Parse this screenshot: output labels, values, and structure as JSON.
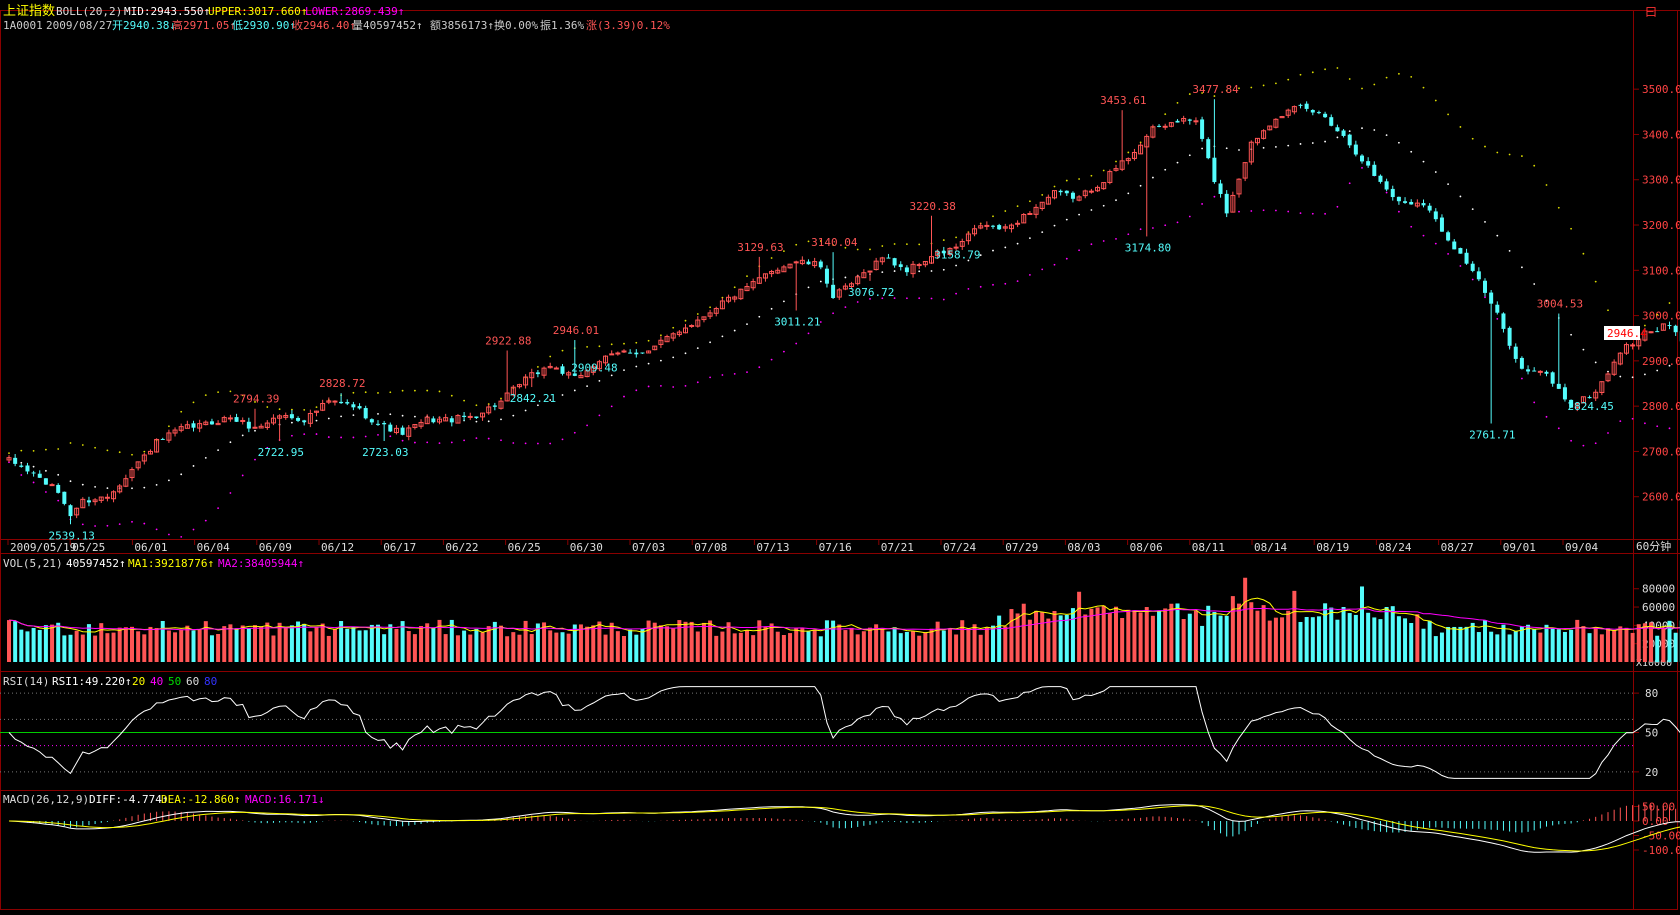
{
  "header": {
    "title": "上证指数",
    "boll_label": "BOLL(20,2)",
    "mid": "MID:2943.550↑",
    "upper": "UPPER:3017.660↑",
    "lower": "LOWER:2869.439↑",
    "code": "1A0001",
    "date": "2009/08/27",
    "open": "开2940.38↓",
    "high": "高2971.05↑",
    "low": "低2930.90↑",
    "close": "收2946.40↑",
    "volume": "量40597452↑",
    "amount": "额3856173↑",
    "turnover": "换0.00%",
    "amplitude": "振1.36%",
    "change": "涨(3.39)0.12%"
  },
  "corner_label": "曰",
  "period_label": "60分钟",
  "price_tag": "2946.4",
  "colors": {
    "background": "#000000",
    "up": "#ff5555",
    "down": "#54fcfc",
    "frame": "#8a0000",
    "mid_line": "#dddd00",
    "lower_line": "#ff00ff",
    "rsi_line": "#ffffff",
    "rsi_mid": "#00cc00",
    "macd_diff": "#ffffff",
    "macd_dea": "#ffff00"
  },
  "vol_panel": {
    "label": "VOL(5,21)",
    "value": "40597452↑",
    "ma1": "MA1:39218776↑",
    "ma2": "MA2:38405944↑",
    "unit": "X10000",
    "ticks": [
      "80000",
      "60000",
      "40000",
      "20000"
    ]
  },
  "rsi_panel": {
    "label": "RSI(14)",
    "value": "RSI1:49.220↑",
    "levels": [
      "20",
      "40",
      "50",
      "60",
      "80"
    ],
    "ticks": [
      "80",
      "50",
      "20"
    ]
  },
  "macd_panel": {
    "label": "MACD(26,12,9)",
    "diff": "DIFF:-4.774↑",
    "dea": "DEA:-12.860↑",
    "macd": "MACD:16.171↓",
    "ticks": [
      "50.00",
      "0.00",
      "-50.00",
      "-100.0"
    ]
  },
  "chart_data": {
    "type": "candlestick",
    "y_range": [
      2500,
      3560
    ],
    "y_ticks": [
      "3500.0",
      "3400.0",
      "3300.0",
      "3200.0",
      "3100.0",
      "3000.0",
      "2900.0",
      "2800.0",
      "2700.0",
      "2600.0"
    ],
    "x_ticks": [
      "2009/05/19",
      "05/25",
      "06/01",
      "06/04",
      "06/09",
      "06/12",
      "06/17",
      "06/22",
      "06/25",
      "06/30",
      "07/03",
      "07/08",
      "07/13",
      "07/16",
      "07/21",
      "07/24",
      "07/29",
      "08/03",
      "08/06",
      "08/11",
      "08/14",
      "08/19",
      "08/24",
      "08/27",
      "09/01",
      "09/04"
    ],
    "close_anchors": [
      [
        0,
        2680
      ],
      [
        4,
        2650
      ],
      [
        8,
        2610
      ],
      [
        10,
        2560
      ],
      [
        12,
        2590
      ],
      [
        16,
        2600
      ],
      [
        20,
        2660
      ],
      [
        24,
        2720
      ],
      [
        28,
        2750
      ],
      [
        32,
        2760
      ],
      [
        36,
        2775
      ],
      [
        40,
        2750
      ],
      [
        44,
        2780
      ],
      [
        48,
        2770
      ],
      [
        52,
        2810
      ],
      [
        56,
        2800
      ],
      [
        60,
        2760
      ],
      [
        64,
        2740
      ],
      [
        68,
        2770
      ],
      [
        72,
        2770
      ],
      [
        76,
        2780
      ],
      [
        80,
        2810
      ],
      [
        84,
        2860
      ],
      [
        88,
        2890
      ],
      [
        92,
        2860
      ],
      [
        96,
        2900
      ],
      [
        100,
        2920
      ],
      [
        104,
        2920
      ],
      [
        108,
        2960
      ],
      [
        112,
        2990
      ],
      [
        116,
        3030
      ],
      [
        120,
        3060
      ],
      [
        124,
        3100
      ],
      [
        128,
        3120
      ],
      [
        132,
        3110
      ],
      [
        134,
        3040
      ],
      [
        138,
        3080
      ],
      [
        142,
        3130
      ],
      [
        146,
        3100
      ],
      [
        150,
        3130
      ],
      [
        154,
        3150
      ],
      [
        158,
        3200
      ],
      [
        162,
        3190
      ],
      [
        166,
        3230
      ],
      [
        170,
        3270
      ],
      [
        174,
        3260
      ],
      [
        178,
        3300
      ],
      [
        182,
        3350
      ],
      [
        186,
        3410
      ],
      [
        190,
        3430
      ],
      [
        193,
        3430
      ],
      [
        196,
        3300
      ],
      [
        198,
        3230
      ],
      [
        202,
        3380
      ],
      [
        206,
        3440
      ],
      [
        210,
        3460
      ],
      [
        214,
        3440
      ],
      [
        218,
        3380
      ],
      [
        222,
        3310
      ],
      [
        226,
        3250
      ],
      [
        230,
        3250
      ],
      [
        234,
        3170
      ],
      [
        238,
        3100
      ],
      [
        242,
        3000
      ],
      [
        246,
        2880
      ],
      [
        250,
        2870
      ],
      [
        254,
        2800
      ],
      [
        258,
        2830
      ],
      [
        262,
        2920
      ],
      [
        266,
        2960
      ],
      [
        270,
        2980
      ],
      [
        274,
        2900
      ],
      [
        276,
        2850
      ],
      [
        280,
        2940
      ],
      [
        283,
        2960
      ],
      [
        286,
        2946
      ]
    ],
    "extreme_labels": [
      {
        "text": "2539.13",
        "index": 10,
        "price": 2539.13,
        "kind": "low"
      },
      {
        "text": "2794.39",
        "index": 40,
        "price": 2794.39,
        "kind": "high"
      },
      {
        "text": "2722.95",
        "index": 44,
        "price": 2722.95,
        "kind": "low"
      },
      {
        "text": "2828.72",
        "index": 54,
        "price": 2828.72,
        "kind": "high"
      },
      {
        "text": "2723.03",
        "index": 61,
        "price": 2723.03,
        "kind": "low"
      },
      {
        "text": "2922.88",
        "index": 81,
        "price": 2922.88,
        "kind": "high"
      },
      {
        "text": "2842.21",
        "index": 85,
        "price": 2842.21,
        "kind": "low"
      },
      {
        "text": "2946.01",
        "index": 92,
        "price": 2946.01,
        "kind": "high"
      },
      {
        "text": "2909.48",
        "index": 95,
        "price": 2909.48,
        "kind": "low"
      },
      {
        "text": "3129.63",
        "index": 122,
        "price": 3129.63,
        "kind": "high"
      },
      {
        "text": "3011.21",
        "index": 128,
        "price": 3011.21,
        "kind": "low"
      },
      {
        "text": "3140.04",
        "index": 134,
        "price": 3140.04,
        "kind": "high"
      },
      {
        "text": "3076.72",
        "index": 140,
        "price": 3076.72,
        "kind": "low"
      },
      {
        "text": "3220.38",
        "index": 150,
        "price": 3220.38,
        "kind": "high"
      },
      {
        "text": "3158.79",
        "index": 154,
        "price": 3158.79,
        "kind": "low"
      },
      {
        "text": "3453.61",
        "index": 181,
        "price": 3453.61,
        "kind": "high"
      },
      {
        "text": "3174.80",
        "index": 185,
        "price": 3174.8,
        "kind": "low"
      },
      {
        "text": "3477.84",
        "index": 196,
        "price": 3477.84,
        "kind": "high"
      },
      {
        "text": "2761.71",
        "index": 241,
        "price": 2761.71,
        "kind": "low"
      },
      {
        "text": "3004.53",
        "index": 252,
        "price": 3004.53,
        "kind": "high"
      },
      {
        "text": "2824.45",
        "index": 257,
        "price": 2824.45,
        "kind": "low"
      }
    ]
  }
}
